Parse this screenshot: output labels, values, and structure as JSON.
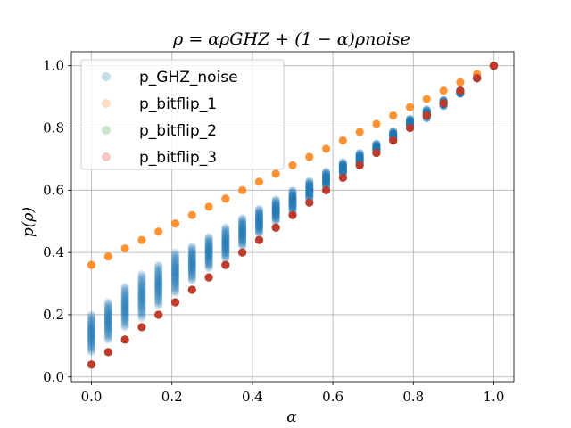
{
  "chart_data": {
    "type": "scatter",
    "title": "ρ = αρGHZ + (1 − α)ρnoise",
    "xlabel": "α",
    "ylabel": "p(ρ)",
    "xlim": [
      -0.05,
      1.05
    ],
    "ylim": [
      -0.015,
      1.045
    ],
    "grid": true,
    "legend_position": "upper-left",
    "x_ticks": [
      "0.0",
      "0.2",
      "0.4",
      "0.6",
      "0.8",
      "1.0"
    ],
    "y_ticks": [
      "0.0",
      "0.2",
      "0.4",
      "0.6",
      "0.8",
      "1.0"
    ],
    "x": [
      0.0,
      0.0417,
      0.0833,
      0.125,
      0.1667,
      0.2083,
      0.25,
      0.2917,
      0.3333,
      0.375,
      0.4167,
      0.4583,
      0.5,
      0.5417,
      0.5833,
      0.625,
      0.6667,
      0.7083,
      0.75,
      0.7917,
      0.8333,
      0.875,
      0.9167,
      0.9583,
      1.0
    ],
    "series": [
      {
        "name": "p_GHZ_noise",
        "color": "#1f77b4",
        "y_min": [
          0.08,
          0.12,
          0.16,
          0.19,
          0.23,
          0.27,
          0.31,
          0.35,
          0.38,
          0.42,
          0.46,
          0.5,
          0.53,
          0.57,
          0.61,
          0.65,
          0.68,
          0.72,
          0.76,
          0.8,
          0.83,
          0.87,
          0.91,
          0.96,
          1.0
        ],
        "y_max": [
          0.2,
          0.24,
          0.29,
          0.33,
          0.36,
          0.4,
          0.42,
          0.45,
          0.48,
          0.51,
          0.54,
          0.57,
          0.6,
          0.63,
          0.66,
          0.69,
          0.72,
          0.75,
          0.79,
          0.83,
          0.86,
          0.89,
          0.92,
          0.96,
          1.0
        ]
      },
      {
        "name": "p_bitflip_1",
        "color": "#ff7f0e",
        "values": [
          0.36,
          0.387,
          0.413,
          0.44,
          0.467,
          0.493,
          0.52,
          0.547,
          0.573,
          0.6,
          0.627,
          0.653,
          0.68,
          0.707,
          0.733,
          0.76,
          0.787,
          0.813,
          0.84,
          0.867,
          0.893,
          0.92,
          0.947,
          0.973,
          1.0
        ]
      },
      {
        "name": "p_bitflip_2",
        "color": "#2ca02c",
        "values": [
          0.04,
          0.08,
          0.12,
          0.16,
          0.2,
          0.24,
          0.28,
          0.32,
          0.36,
          0.4,
          0.44,
          0.48,
          0.52,
          0.56,
          0.6,
          0.64,
          0.68,
          0.72,
          0.76,
          0.8,
          0.84,
          0.88,
          0.92,
          0.96,
          1.0
        ]
      },
      {
        "name": "p_bitflip_3",
        "color": "#d62728",
        "values": [
          0.04,
          0.08,
          0.12,
          0.16,
          0.2,
          0.24,
          0.28,
          0.32,
          0.36,
          0.4,
          0.44,
          0.48,
          0.52,
          0.56,
          0.6,
          0.64,
          0.68,
          0.72,
          0.76,
          0.8,
          0.84,
          0.88,
          0.92,
          0.96,
          1.0
        ]
      }
    ]
  }
}
